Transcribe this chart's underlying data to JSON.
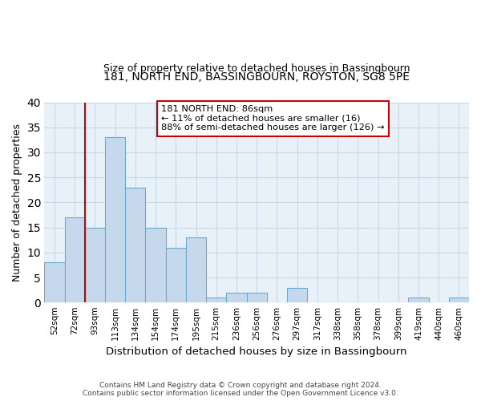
{
  "title": "181, NORTH END, BASSINGBOURN, ROYSTON, SG8 5PE",
  "subtitle": "Size of property relative to detached houses in Bassingbourn",
  "xlabel": "Distribution of detached houses by size in Bassingbourn",
  "ylabel": "Number of detached properties",
  "bar_labels": [
    "52sqm",
    "72sqm",
    "93sqm",
    "113sqm",
    "134sqm",
    "154sqm",
    "174sqm",
    "195sqm",
    "215sqm",
    "236sqm",
    "256sqm",
    "276sqm",
    "297sqm",
    "317sqm",
    "338sqm",
    "358sqm",
    "378sqm",
    "399sqm",
    "419sqm",
    "440sqm",
    "460sqm"
  ],
  "bar_heights": [
    8,
    17,
    15,
    33,
    23,
    15,
    11,
    13,
    1,
    2,
    2,
    0,
    3,
    0,
    0,
    0,
    0,
    0,
    1,
    0,
    1
  ],
  "bar_color": "#c5d8ec",
  "bar_edge_color": "#6aaad4",
  "property_line_color": "#cc0000",
  "ylim": [
    0,
    40
  ],
  "yticks": [
    0,
    5,
    10,
    15,
    20,
    25,
    30,
    35,
    40
  ],
  "annotation_text_line1": "181 NORTH END: 86sqm",
  "annotation_text_line2": "← 11% of detached houses are smaller (16)",
  "annotation_text_line3": "88% of semi-detached houses are larger (126) →",
  "annotation_box_color": "#ffffff",
  "annotation_box_edge": "#cc0000",
  "footer_line1": "Contains HM Land Registry data © Crown copyright and database right 2024.",
  "footer_line2": "Contains public sector information licensed under the Open Government Licence v3.0.",
  "background_color": "#ffffff",
  "axes_bg_color": "#e8f0f8",
  "grid_color": "#c8d8e8"
}
